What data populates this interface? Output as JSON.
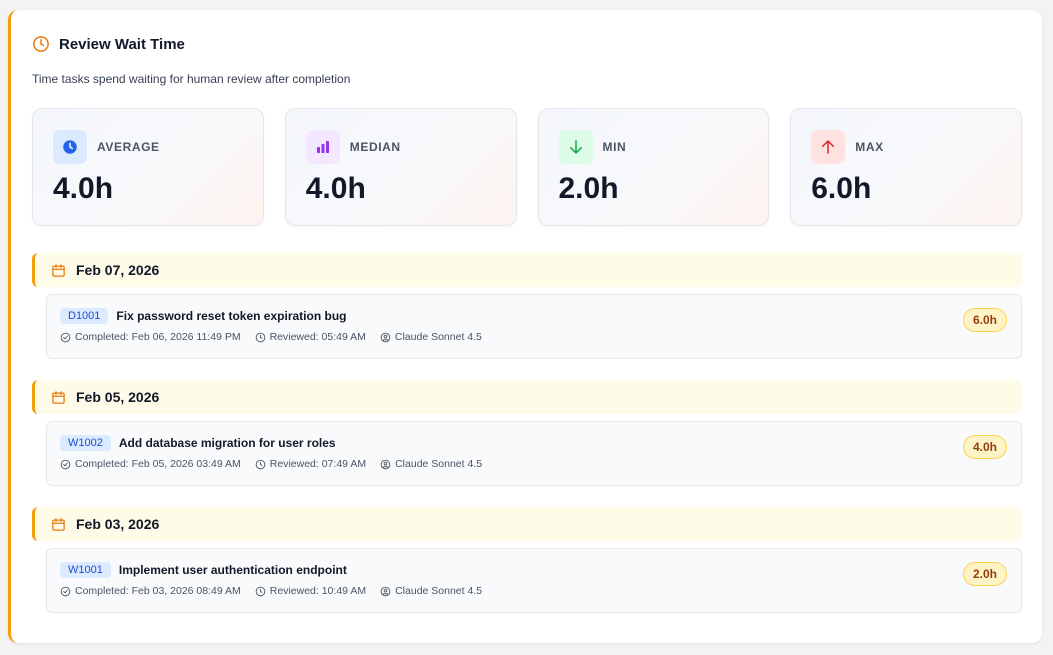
{
  "header": {
    "title": "Review Wait Time",
    "subtitle": "Time tasks spend waiting for human review after completion"
  },
  "stats": [
    {
      "label": "AVERAGE",
      "value": "4.0h",
      "icon": "clock-icon",
      "color": "#2563eb",
      "bg": "#dbeafe"
    },
    {
      "label": "MEDIAN",
      "value": "4.0h",
      "icon": "bar-chart-icon",
      "color": "#9333ea",
      "bg": "#f3e8ff"
    },
    {
      "label": "MIN",
      "value": "2.0h",
      "icon": "arrow-down-icon",
      "color": "#16a34a",
      "bg": "#dcfce7"
    },
    {
      "label": "MAX",
      "value": "6.0h",
      "icon": "arrow-up-icon",
      "color": "#dc2626",
      "bg": "#fee2e2"
    }
  ],
  "groups": [
    {
      "date": "Feb 07, 2026",
      "tasks": [
        {
          "id": "D1001",
          "title": "Fix password reset token expiration bug",
          "completed": "Completed: Feb 06, 2026 11:49 PM",
          "reviewed": "Reviewed: 05:49 AM",
          "agent": "Claude Sonnet 4.5",
          "wait": "6.0h"
        }
      ]
    },
    {
      "date": "Feb 05, 2026",
      "tasks": [
        {
          "id": "W1002",
          "title": "Add database migration for user roles",
          "completed": "Completed: Feb 05, 2026 03:49 AM",
          "reviewed": "Reviewed: 07:49 AM",
          "agent": "Claude Sonnet 4.5",
          "wait": "4.0h"
        }
      ]
    },
    {
      "date": "Feb 03, 2026",
      "tasks": [
        {
          "id": "W1001",
          "title": "Implement user authentication endpoint",
          "completed": "Completed: Feb 03, 2026 08:49 AM",
          "reviewed": "Reviewed: 10:49 AM",
          "agent": "Claude Sonnet 4.5",
          "wait": "2.0h"
        }
      ]
    }
  ],
  "colors": {
    "accent": "#f59e0b",
    "date_bar_bg": "#fefbe9",
    "badge_bg": "#fef3c7"
  }
}
